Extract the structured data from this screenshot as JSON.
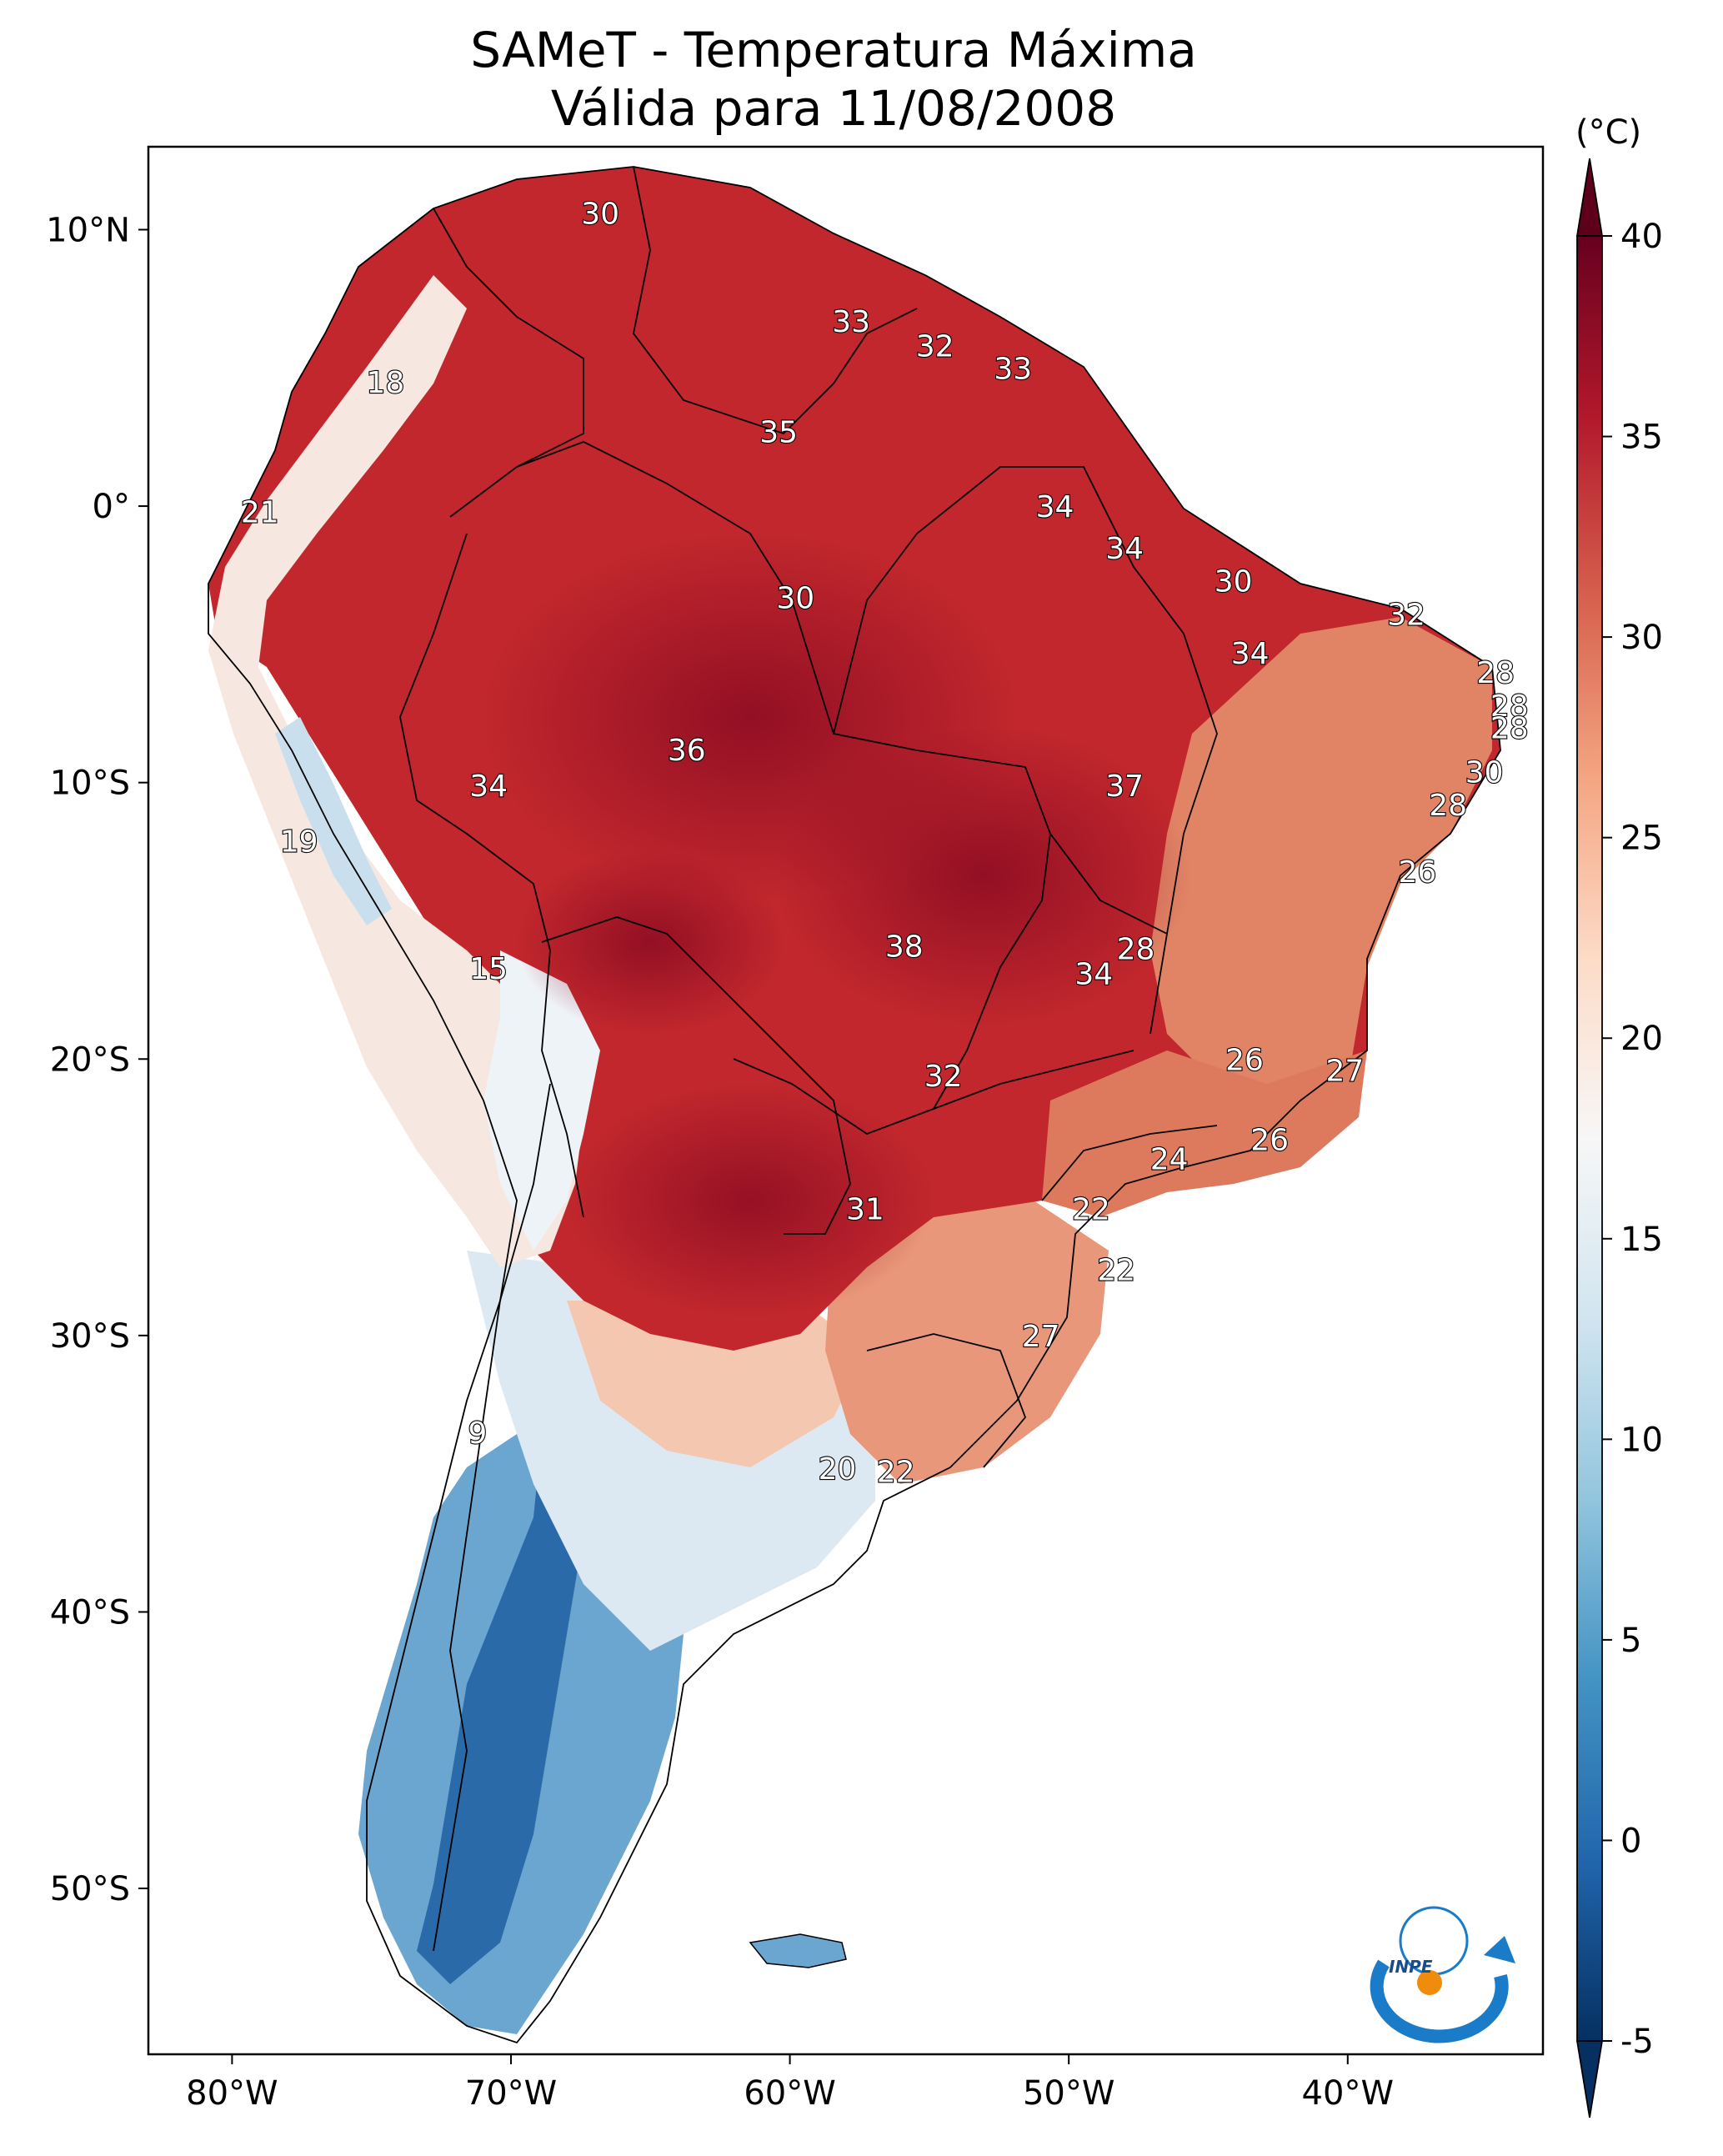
{
  "title_line1": "SAMeT - Temperatura Máxima",
  "title_line2": "Válida para 11/08/2008",
  "colorbar": {
    "unit": "(°C)",
    "min": -5,
    "max": 40,
    "ticks": [
      "40",
      "35",
      "30",
      "25",
      "20",
      "15",
      "10",
      "5",
      "0",
      "-5"
    ],
    "tick_values": [
      40,
      35,
      30,
      25,
      20,
      15,
      10,
      5,
      0,
      -5
    ],
    "colors": [
      "#053061",
      "#2166ac",
      "#4393c3",
      "#92c5de",
      "#d1e5f0",
      "#f7f7f7",
      "#fddbc7",
      "#f4a582",
      "#d6604d",
      "#b2182b",
      "#67001f"
    ]
  },
  "axes": {
    "lon_labels": [
      "80°W",
      "70°W",
      "60°W",
      "50°W",
      "40°W"
    ],
    "lon_values": [
      -80,
      -70,
      -60,
      -50,
      -40
    ],
    "lat_labels": [
      "10°N",
      "0°",
      "10°S",
      "20°S",
      "30°S",
      "40°S",
      "50°S"
    ],
    "lat_values": [
      10,
      0,
      -10,
      -20,
      -30,
      -40,
      -50
    ],
    "lon_range": [
      -83,
      -33
    ],
    "lat_range": [
      -56,
      13
    ]
  },
  "temperature_labels": [
    {
      "text": "30",
      "lon": -66.8,
      "lat": 10.6
    },
    {
      "text": "33",
      "lon": -57.8,
      "lat": 6.7
    },
    {
      "text": "32",
      "lon": -54.8,
      "lat": 5.8
    },
    {
      "text": "33",
      "lon": -52.0,
      "lat": 5.0
    },
    {
      "text": "18",
      "lon": -74.5,
      "lat": 4.5
    },
    {
      "text": "35",
      "lon": -60.4,
      "lat": 2.7
    },
    {
      "text": "21",
      "lon": -79.0,
      "lat": -0.2
    },
    {
      "text": "34",
      "lon": -50.5,
      "lat": 0.0
    },
    {
      "text": "34",
      "lon": -48.0,
      "lat": -1.5
    },
    {
      "text": "30",
      "lon": -59.8,
      "lat": -3.3
    },
    {
      "text": "30",
      "lon": -44.1,
      "lat": -2.7
    },
    {
      "text": "32",
      "lon": -37.9,
      "lat": -3.9
    },
    {
      "text": "34",
      "lon": -43.5,
      "lat": -5.3
    },
    {
      "text": "28",
      "lon": -34.7,
      "lat": -6.0
    },
    {
      "text": "28",
      "lon": -34.2,
      "lat": -7.2
    },
    {
      "text": "28",
      "lon": -34.2,
      "lat": -8.0
    },
    {
      "text": "36",
      "lon": -63.7,
      "lat": -8.8
    },
    {
      "text": "34",
      "lon": -70.8,
      "lat": -10.1
    },
    {
      "text": "37",
      "lon": -48.0,
      "lat": -10.1
    },
    {
      "text": "30",
      "lon": -35.1,
      "lat": -9.6
    },
    {
      "text": "28",
      "lon": -36.4,
      "lat": -10.8
    },
    {
      "text": "19",
      "lon": -77.6,
      "lat": -12.1
    },
    {
      "text": "26",
      "lon": -37.5,
      "lat": -13.2
    },
    {
      "text": "38",
      "lon": -55.9,
      "lat": -15.9
    },
    {
      "text": "28",
      "lon": -47.6,
      "lat": -16.0
    },
    {
      "text": "34",
      "lon": -49.1,
      "lat": -16.9
    },
    {
      "text": "15",
      "lon": -70.8,
      "lat": -16.7
    },
    {
      "text": "26",
      "lon": -43.7,
      "lat": -20.0
    },
    {
      "text": "27",
      "lon": -40.1,
      "lat": -20.4
    },
    {
      "text": "32",
      "lon": -54.5,
      "lat": -20.6
    },
    {
      "text": "24",
      "lon": -46.4,
      "lat": -23.6
    },
    {
      "text": "26",
      "lon": -42.8,
      "lat": -22.9
    },
    {
      "text": "31",
      "lon": -57.3,
      "lat": -25.4
    },
    {
      "text": "22",
      "lon": -49.2,
      "lat": -25.4
    },
    {
      "text": "22",
      "lon": -48.3,
      "lat": -27.6
    },
    {
      "text": "27",
      "lon": -51.0,
      "lat": -30.0
    },
    {
      "text": "9",
      "lon": -71.2,
      "lat": -33.5
    },
    {
      "text": "20",
      "lon": -58.3,
      "lat": -34.8
    },
    {
      "text": "22",
      "lon": -56.2,
      "lat": -34.9
    }
  ],
  "logo_text": "INPE"
}
